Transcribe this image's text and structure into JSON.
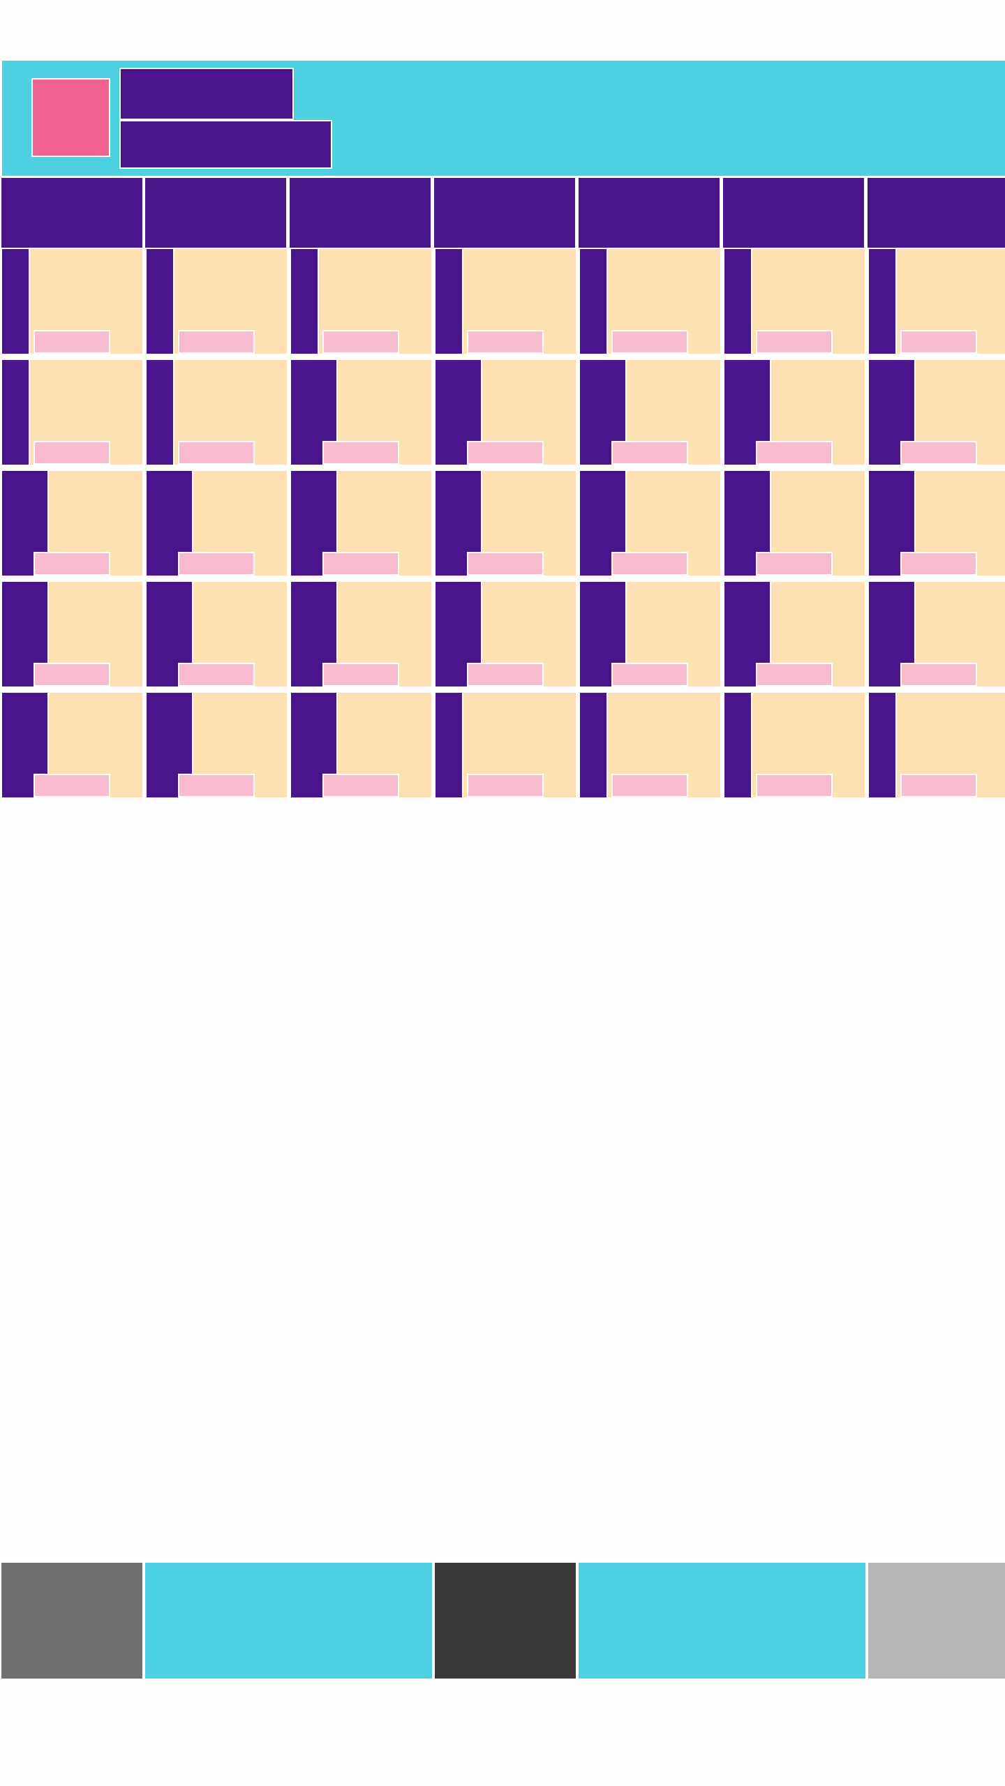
{
  "header": {
    "title": "",
    "subtitle": "",
    "avatar_icon": "avatar-icon",
    "colors": {
      "background": "#4dd0e1",
      "avatar": "#f06292",
      "title_block": "#4a148c"
    }
  },
  "calendar": {
    "day_headers": [
      {
        "label": ""
      },
      {
        "label": ""
      },
      {
        "label": ""
      },
      {
        "label": ""
      },
      {
        "label": ""
      },
      {
        "label": ""
      },
      {
        "label": ""
      }
    ],
    "rows": [
      {
        "cells": [
          {
            "bar": "narrow",
            "text": "",
            "tag": ""
          },
          {
            "bar": "narrow",
            "text": "",
            "tag": ""
          },
          {
            "bar": "narrow",
            "text": "",
            "tag": ""
          },
          {
            "bar": "narrow",
            "text": "",
            "tag": ""
          },
          {
            "bar": "narrow",
            "text": "",
            "tag": ""
          },
          {
            "bar": "narrow",
            "text": "",
            "tag": ""
          },
          {
            "bar": "narrow",
            "text": "",
            "tag": ""
          }
        ]
      },
      {
        "cells": [
          {
            "bar": "narrow",
            "text": "",
            "tag": ""
          },
          {
            "bar": "narrow",
            "text": "",
            "tag": ""
          },
          {
            "bar": "wide",
            "text": "",
            "tag": ""
          },
          {
            "bar": "wide",
            "text": "",
            "tag": ""
          },
          {
            "bar": "wide",
            "text": "",
            "tag": ""
          },
          {
            "bar": "wide",
            "text": "",
            "tag": ""
          },
          {
            "bar": "wide",
            "text": "",
            "tag": ""
          }
        ]
      },
      {
        "cells": [
          {
            "bar": "wide",
            "text": "",
            "tag": ""
          },
          {
            "bar": "wide",
            "text": "",
            "tag": ""
          },
          {
            "bar": "wide",
            "text": "",
            "tag": ""
          },
          {
            "bar": "wide",
            "text": "",
            "tag": ""
          },
          {
            "bar": "wide",
            "text": "",
            "tag": ""
          },
          {
            "bar": "wide",
            "text": "",
            "tag": ""
          },
          {
            "bar": "wide",
            "text": "",
            "tag": ""
          }
        ]
      },
      {
        "cells": [
          {
            "bar": "wide",
            "text": "",
            "tag": ""
          },
          {
            "bar": "wide",
            "text": "",
            "tag": ""
          },
          {
            "bar": "wide",
            "text": "",
            "tag": ""
          },
          {
            "bar": "wide",
            "text": "",
            "tag": ""
          },
          {
            "bar": "wide",
            "text": "",
            "tag": ""
          },
          {
            "bar": "wide",
            "text": "",
            "tag": ""
          },
          {
            "bar": "wide",
            "text": "",
            "tag": ""
          }
        ]
      },
      {
        "cells": [
          {
            "bar": "wide",
            "text": "",
            "tag": ""
          },
          {
            "bar": "wide",
            "text": "",
            "tag": ""
          },
          {
            "bar": "wide",
            "text": "",
            "tag": ""
          },
          {
            "bar": "narrow",
            "text": "",
            "tag": ""
          },
          {
            "bar": "narrow",
            "text": "",
            "tag": ""
          },
          {
            "bar": "narrow",
            "text": "",
            "tag": ""
          },
          {
            "bar": "narrow",
            "text": "",
            "tag": ""
          }
        ]
      }
    ],
    "colors": {
      "header": "#4a148c",
      "cell": "#ffe0b2",
      "bar": "#4a148c",
      "tag": "#f8bbd0"
    }
  },
  "bottom_bar": {
    "segments": [
      {
        "label": "",
        "color": "#6f6f6f"
      },
      {
        "label": "",
        "color": "#4dd0e1"
      },
      {
        "label": "",
        "color": "#3a3a3a"
      },
      {
        "label": "",
        "color": "#4dd0e1"
      },
      {
        "label": "",
        "color": "#b6b6b6"
      }
    ]
  }
}
